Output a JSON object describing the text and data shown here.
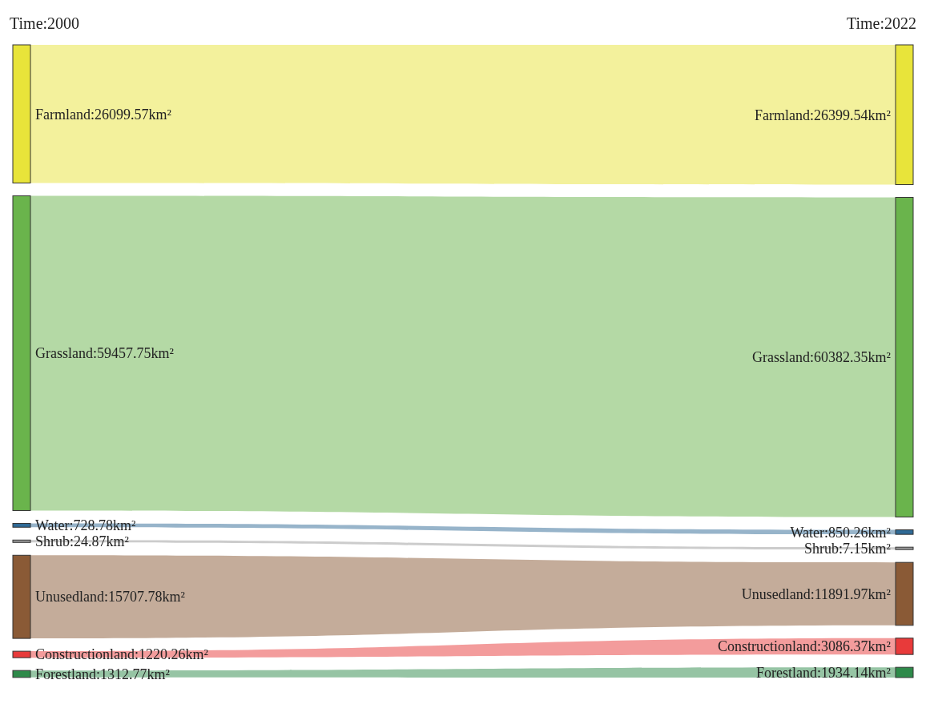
{
  "chart_data": {
    "type": "other",
    "categories": [
      "Farmland",
      "Grassland",
      "Water",
      "Shrub",
      "Unusedland",
      "Constructionland",
      "Forestland"
    ],
    "series": [
      {
        "name": "Time:2000",
        "values": [
          26099.57,
          59457.75,
          728.78,
          24.87,
          15707.78,
          1220.26,
          1312.77
        ],
        "value_labels": [
          ":26099.57km²",
          ":59457.75km²",
          ":728.78km²",
          ":24.87km²",
          ":15707.78km²",
          ":1220.26km²",
          ":1312.77km²"
        ],
        "colors": [
          "#e8e43a",
          "#6ab44c",
          "#2f6a96",
          "#9a9a9a",
          "#8a5a36",
          "#e83a3a",
          "#2e8a4a"
        ]
      },
      {
        "name": "Time:2022",
        "values": [
          26399.54,
          60382.35,
          850.26,
          7.15,
          11891.97,
          3086.37,
          1934.14
        ],
        "value_labels": [
          ":26399.54km²",
          ":60382.35km²",
          ":850.26km²",
          ":7.15km²",
          ":11891.97km²",
          ":3086.37km²",
          ":1934.14km²"
        ],
        "colors": [
          "#e8e43a",
          "#6ab44c",
          "#2f6a96",
          "#9a9a9a",
          "#8a5a36",
          "#e83a3a",
          "#2e8a4a"
        ]
      }
    ]
  }
}
